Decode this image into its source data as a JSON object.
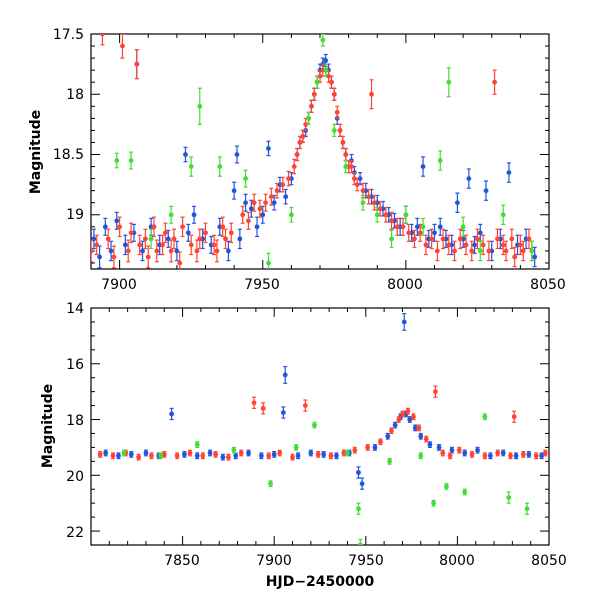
{
  "chart_data": [
    {
      "type": "scatter",
      "title": "",
      "xlabel": "",
      "ylabel": "Magnitude",
      "xlim": [
        7890,
        8050
      ],
      "ylim": [
        19.45,
        17.5
      ],
      "y_inverted": true,
      "grid": false,
      "x_ticks": [
        "7900",
        "7950",
        "8000",
        "8050"
      ],
      "y_ticks": [
        "17.5",
        "18",
        "18.5",
        "19"
      ],
      "series_colors": [
        "#2255dd",
        "#ff4433",
        "#44dd33"
      ],
      "series": [
        {
          "color": "#2255dd",
          "x": [
            7891,
            7893,
            7895,
            7897,
            7899,
            7902,
            7905,
            7906,
            7908,
            7911,
            7914,
            7917,
            7920,
            7923,
            7924,
            7926,
            7929,
            7932,
            7935,
            7938,
            7940,
            7941,
            7942,
            7944,
            7946,
            7948,
            7950,
            7952,
            7954,
            7956,
            7958,
            7960,
            7962,
            7963,
            7964,
            7965,
            7966,
            7967,
            7968,
            7969,
            7970,
            7971,
            7972,
            7973,
            7974,
            7975,
            7976,
            7977,
            7978,
            7979,
            7980,
            7981,
            7982,
            7984,
            7986,
            7988,
            7990,
            7992,
            7994,
            7996,
            7998,
            8000,
            8002,
            8004,
            8006,
            8008,
            8010,
            8012,
            8014,
            8016,
            8018,
            8020,
            8022,
            8024,
            8026,
            8028,
            8030,
            8033,
            8036,
            8039,
            8042,
            8045
          ],
          "y": [
            19.2,
            19.35,
            19.1,
            19.3,
            19.05,
            19.25,
            19.15,
            17.75,
            19.3,
            19.1,
            19.25,
            19.2,
            19.3,
            18.5,
            19.15,
            19.0,
            19.2,
            19.25,
            19.1,
            19.3,
            18.8,
            18.5,
            19.2,
            18.9,
            18.95,
            19.1,
            19.0,
            18.45,
            18.9,
            18.75,
            18.85,
            18.7,
            18.5,
            18.4,
            18.35,
            18.3,
            18.2,
            18.1,
            18.0,
            17.9,
            17.8,
            17.75,
            17.72,
            17.8,
            17.9,
            18.0,
            18.2,
            18.3,
            18.4,
            18.5,
            18.6,
            18.55,
            18.65,
            18.7,
            18.8,
            18.85,
            18.9,
            18.95,
            19.0,
            19.05,
            19.1,
            19.0,
            19.15,
            19.1,
            18.6,
            19.2,
            19.15,
            19.1,
            19.2,
            19.25,
            18.9,
            19.2,
            18.7,
            19.25,
            19.15,
            18.8,
            19.3,
            19.2,
            18.65,
            19.25,
            19.2,
            19.35
          ],
          "err": [
            0.08,
            0.09,
            0.07,
            0.08,
            0.07,
            0.08,
            0.07,
            0.12,
            0.08,
            0.07,
            0.08,
            0.07,
            0.08,
            0.06,
            0.07,
            0.07,
            0.08,
            0.07,
            0.07,
            0.08,
            0.07,
            0.07,
            0.08,
            0.07,
            0.07,
            0.08,
            0.07,
            0.06,
            0.06,
            0.06,
            0.06,
            0.05,
            0.05,
            0.05,
            0.05,
            0.05,
            0.05,
            0.05,
            0.05,
            0.05,
            0.05,
            0.05,
            0.05,
            0.05,
            0.05,
            0.05,
            0.05,
            0.05,
            0.05,
            0.05,
            0.05,
            0.05,
            0.05,
            0.05,
            0.06,
            0.06,
            0.06,
            0.06,
            0.06,
            0.06,
            0.07,
            0.07,
            0.07,
            0.07,
            0.08,
            0.07,
            0.07,
            0.07,
            0.07,
            0.08,
            0.08,
            0.07,
            0.08,
            0.07,
            0.07,
            0.08,
            0.08,
            0.08,
            0.08,
            0.08,
            0.08,
            0.08
          ]
        },
        {
          "color": "#ff4433",
          "x": [
            7890,
            7892,
            7894,
            7896,
            7898,
            7900,
            7901,
            7903,
            7904,
            7906,
            7907,
            7909,
            7910,
            7912,
            7913,
            7915,
            7916,
            7918,
            7919,
            7921,
            7922,
            7925,
            7927,
            7928,
            7930,
            7933,
            7934,
            7936,
            7937,
            7939,
            7943,
            7945,
            7947,
            7949,
            7951,
            7953,
            7955,
            7957,
            7959,
            7961,
            7962,
            7963,
            7964,
            7965,
            7966,
            7967,
            7968,
            7969,
            7970,
            7971,
            7972,
            7973,
            7974,
            7975,
            7976,
            7977,
            7978,
            7979,
            7980,
            7981,
            7982,
            7983,
            7985,
            7987,
            7988,
            7989,
            7991,
            7993,
            7995,
            7997,
            7999,
            8001,
            8003,
            8005,
            8007,
            8009,
            8011,
            8013,
            8015,
            8017,
            8019,
            8021,
            8023,
            8025,
            8027,
            8029,
            8031,
            8032,
            8034,
            8035,
            8037,
            8038,
            8040,
            8041,
            8043,
            8044
          ],
          "y": [
            19.3,
            19.25,
            17.5,
            19.2,
            19.35,
            19.1,
            17.6,
            19.3,
            19.15,
            17.75,
            19.25,
            19.2,
            19.35,
            19.1,
            19.3,
            19.25,
            19.15,
            19.3,
            19.2,
            19.4,
            19.1,
            19.25,
            19.3,
            19.2,
            19.15,
            19.25,
            19.3,
            19.1,
            19.2,
            19.15,
            19.0,
            19.05,
            18.9,
            18.95,
            18.9,
            18.85,
            18.8,
            18.75,
            18.7,
            18.6,
            18.5,
            18.4,
            18.35,
            18.25,
            18.2,
            18.1,
            18.0,
            17.9,
            17.85,
            17.8,
            17.8,
            17.85,
            17.9,
            18.0,
            18.15,
            18.3,
            18.4,
            18.5,
            18.6,
            18.6,
            18.7,
            18.75,
            18.8,
            18.85,
            18.0,
            18.9,
            18.95,
            19.0,
            19.05,
            19.1,
            19.1,
            19.15,
            19.2,
            19.15,
            19.25,
            19.2,
            19.3,
            19.2,
            19.25,
            19.3,
            19.2,
            19.25,
            19.3,
            19.2,
            19.25,
            19.3,
            17.9,
            19.2,
            19.25,
            19.3,
            19.2,
            19.35,
            19.25,
            19.3,
            19.2,
            19.3
          ],
          "err": [
            0.09,
            0.08,
            0.09,
            0.08,
            0.09,
            0.08,
            0.1,
            0.09,
            0.08,
            0.12,
            0.08,
            0.08,
            0.09,
            0.08,
            0.09,
            0.08,
            0.08,
            0.09,
            0.08,
            0.09,
            0.08,
            0.08,
            0.09,
            0.08,
            0.08,
            0.08,
            0.09,
            0.08,
            0.08,
            0.08,
            0.07,
            0.07,
            0.07,
            0.07,
            0.07,
            0.07,
            0.06,
            0.06,
            0.06,
            0.06,
            0.05,
            0.05,
            0.05,
            0.05,
            0.05,
            0.05,
            0.05,
            0.05,
            0.05,
            0.05,
            0.05,
            0.05,
            0.05,
            0.05,
            0.05,
            0.05,
            0.05,
            0.05,
            0.05,
            0.05,
            0.05,
            0.05,
            0.06,
            0.06,
            0.12,
            0.06,
            0.06,
            0.06,
            0.07,
            0.07,
            0.07,
            0.07,
            0.07,
            0.07,
            0.08,
            0.08,
            0.08,
            0.08,
            0.08,
            0.08,
            0.08,
            0.08,
            0.08,
            0.08,
            0.08,
            0.08,
            0.1,
            0.08,
            0.08,
            0.08,
            0.08,
            0.08,
            0.08,
            0.08,
            0.08,
            0.08
          ]
        },
        {
          "color": "#44dd33",
          "x": [
            7899,
            7904,
            7911,
            7918,
            7925,
            7928,
            7935,
            7944,
            7952,
            7960,
            7966,
            7969,
            7971,
            7972,
            7975,
            7979,
            7985,
            7990,
            7995,
            8000,
            8006,
            8012,
            8015,
            8020,
            8026,
            8034,
            8044
          ],
          "y": [
            18.55,
            18.55,
            19.2,
            19.0,
            18.6,
            18.1,
            18.6,
            18.7,
            19.4,
            19.0,
            18.2,
            17.9,
            17.55,
            17.8,
            18.3,
            18.6,
            18.9,
            19.0,
            19.2,
            19.0,
            19.1,
            18.55,
            17.9,
            19.1,
            19.3,
            19.0,
            19.3
          ],
          "err": [
            0.06,
            0.07,
            0.08,
            0.07,
            0.08,
            0.15,
            0.08,
            0.07,
            0.08,
            0.06,
            0.05,
            0.05,
            0.05,
            0.05,
            0.05,
            0.05,
            0.06,
            0.06,
            0.07,
            0.07,
            0.07,
            0.08,
            0.12,
            0.08,
            0.08,
            0.08,
            0.08
          ]
        }
      ]
    },
    {
      "type": "scatter",
      "title": "",
      "xlabel": "HJD−2450000",
      "ylabel": "Magnitude",
      "xlim": [
        7800,
        8050
      ],
      "ylim": [
        22.5,
        14
      ],
      "y_inverted": true,
      "grid": false,
      "x_ticks": [
        "7850",
        "7900",
        "7950",
        "8000",
        "8050"
      ],
      "y_ticks": [
        "14",
        "16",
        "18",
        "20",
        "22"
      ],
      "series_colors": [
        "#2255dd",
        "#ff4433",
        "#44dd33"
      ],
      "series": [
        {
          "color": "#2255dd",
          "x": [
            7808,
            7815,
            7822,
            7830,
            7837,
            7844,
            7851,
            7858,
            7865,
            7872,
            7879,
            7886,
            7893,
            7900,
            7905,
            7906,
            7913,
            7920,
            7927,
            7934,
            7941,
            7946,
            7948,
            7955,
            7962,
            7966,
            7969,
            7971,
            7972,
            7974,
            7977,
            7980,
            7985,
            7990,
            7997,
            8004,
            8011,
            8018,
            8025,
            8032,
            8039,
            8046
          ],
          "y": [
            19.2,
            19.3,
            19.25,
            19.2,
            19.3,
            17.8,
            19.25,
            19.3,
            19.2,
            19.35,
            19.3,
            19.2,
            19.3,
            19.25,
            17.75,
            16.4,
            19.3,
            19.2,
            19.25,
            19.3,
            19.2,
            19.9,
            20.3,
            19.0,
            18.6,
            18.2,
            17.9,
            14.5,
            17.8,
            18.0,
            18.3,
            18.6,
            18.9,
            19.0,
            19.1,
            19.2,
            19.1,
            19.3,
            19.2,
            19.3,
            19.25,
            19.3
          ],
          "err": [
            0.1,
            0.1,
            0.1,
            0.1,
            0.1,
            0.2,
            0.1,
            0.1,
            0.1,
            0.1,
            0.1,
            0.1,
            0.1,
            0.1,
            0.2,
            0.3,
            0.1,
            0.1,
            0.1,
            0.1,
            0.1,
            0.2,
            0.2,
            0.1,
            0.1,
            0.1,
            0.1,
            0.3,
            0.1,
            0.1,
            0.1,
            0.1,
            0.1,
            0.1,
            0.1,
            0.1,
            0.1,
            0.1,
            0.1,
            0.1,
            0.1,
            0.1
          ]
        },
        {
          "color": "#ff4433",
          "x": [
            7805,
            7812,
            7819,
            7826,
            7833,
            7840,
            7847,
            7854,
            7861,
            7868,
            7875,
            7882,
            7889,
            7894,
            7897,
            7903,
            7910,
            7917,
            7924,
            7931,
            7938,
            7944,
            7951,
            7958,
            7964,
            7968,
            7970,
            7973,
            7976,
            7979,
            7983,
            7988,
            7992,
            7996,
            8001,
            8008,
            8015,
            8022,
            8029,
            8031,
            8036,
            8043,
            8048
          ],
          "y": [
            19.25,
            19.3,
            19.2,
            19.35,
            19.3,
            19.25,
            19.3,
            19.2,
            19.3,
            19.25,
            19.35,
            19.2,
            17.4,
            17.6,
            19.3,
            19.2,
            19.35,
            17.5,
            19.25,
            19.3,
            19.2,
            19.1,
            19.0,
            18.8,
            18.4,
            18.0,
            17.8,
            17.7,
            17.9,
            18.3,
            18.7,
            17.0,
            19.2,
            19.3,
            19.1,
            19.25,
            19.3,
            19.2,
            19.3,
            17.9,
            19.25,
            19.3,
            19.2
          ],
          "err": [
            0.1,
            0.1,
            0.1,
            0.1,
            0.1,
            0.1,
            0.1,
            0.1,
            0.1,
            0.1,
            0.1,
            0.1,
            0.2,
            0.2,
            0.1,
            0.1,
            0.1,
            0.2,
            0.1,
            0.1,
            0.1,
            0.1,
            0.1,
            0.1,
            0.1,
            0.1,
            0.1,
            0.1,
            0.1,
            0.1,
            0.1,
            0.2,
            0.1,
            0.1,
            0.1,
            0.1,
            0.1,
            0.1,
            0.1,
            0.2,
            0.1,
            0.1,
            0.1
          ]
        },
        {
          "color": "#44dd33",
          "x": [
            7818,
            7838,
            7858,
            7878,
            7898,
            7912,
            7922,
            7940,
            7946,
            7947,
            7963,
            7980,
            7987,
            7994,
            8004,
            8015,
            8028,
            8038
          ],
          "y": [
            19.2,
            19.3,
            18.9,
            19.1,
            20.3,
            19.0,
            18.2,
            19.2,
            21.2,
            22.5,
            19.5,
            19.3,
            21.0,
            20.4,
            20.6,
            17.9,
            20.8,
            21.2
          ],
          "err": [
            0.1,
            0.1,
            0.1,
            0.1,
            0.1,
            0.1,
            0.1,
            0.1,
            0.2,
            0.2,
            0.1,
            0.1,
            0.1,
            0.1,
            0.1,
            0.1,
            0.2,
            0.2
          ]
        }
      ]
    }
  ]
}
